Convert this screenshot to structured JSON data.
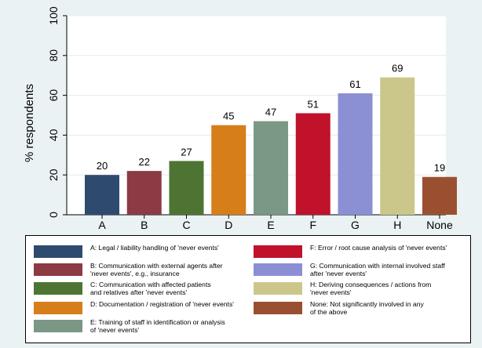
{
  "chart_data": {
    "type": "bar",
    "categories": [
      "A",
      "B",
      "C",
      "D",
      "E",
      "F",
      "G",
      "H",
      "None"
    ],
    "values": [
      20,
      22,
      27,
      45,
      47,
      51,
      61,
      69,
      19
    ],
    "value_labels": [
      "20",
      "22",
      "27",
      "45",
      "47",
      "51",
      "61",
      "69",
      "19"
    ],
    "colors": [
      "#2e4a6e",
      "#8c3a44",
      "#4e7433",
      "#d67e19",
      "#7b9786",
      "#c0122b",
      "#8b8fd4",
      "#cbc78b",
      "#9a5030"
    ],
    "title": "",
    "xlabel": "",
    "ylabel": "% respondents",
    "ylim": [
      0,
      100
    ],
    "yticks": [
      0,
      20,
      40,
      60,
      80,
      100
    ],
    "ytick_labels": [
      "0",
      "20",
      "40",
      "60",
      "80",
      "100"
    ],
    "grid": true,
    "legend_placement": "bottom"
  },
  "legend": [
    {
      "label": "A: Legal / liability handling of 'never events'",
      "color": "#2e4a6e"
    },
    {
      "label": "B: Communication with external agents after\n'never events', e.g., insurance",
      "color": "#8c3a44"
    },
    {
      "label": "C: Communication with affected patients\nand relatives after 'never events'",
      "color": "#4e7433"
    },
    {
      "label": "D: Documentation / registration of 'never events'",
      "color": "#d67e19"
    },
    {
      "label": "E: Training of staff in identification or analysis\nof 'never events'",
      "color": "#7b9786"
    },
    {
      "label": "F: Error / root cause analysis of 'never events'",
      "color": "#c0122b"
    },
    {
      "label": "G: Communication with internal involved staff\nafter 'never events'",
      "color": "#8b8fd4"
    },
    {
      "label": "H: Deriving consequences / actions from\n'never events'",
      "color": "#cbc78b"
    },
    {
      "label": "None: Not significantly involved in any\nof the above",
      "color": "#9a5030"
    }
  ]
}
